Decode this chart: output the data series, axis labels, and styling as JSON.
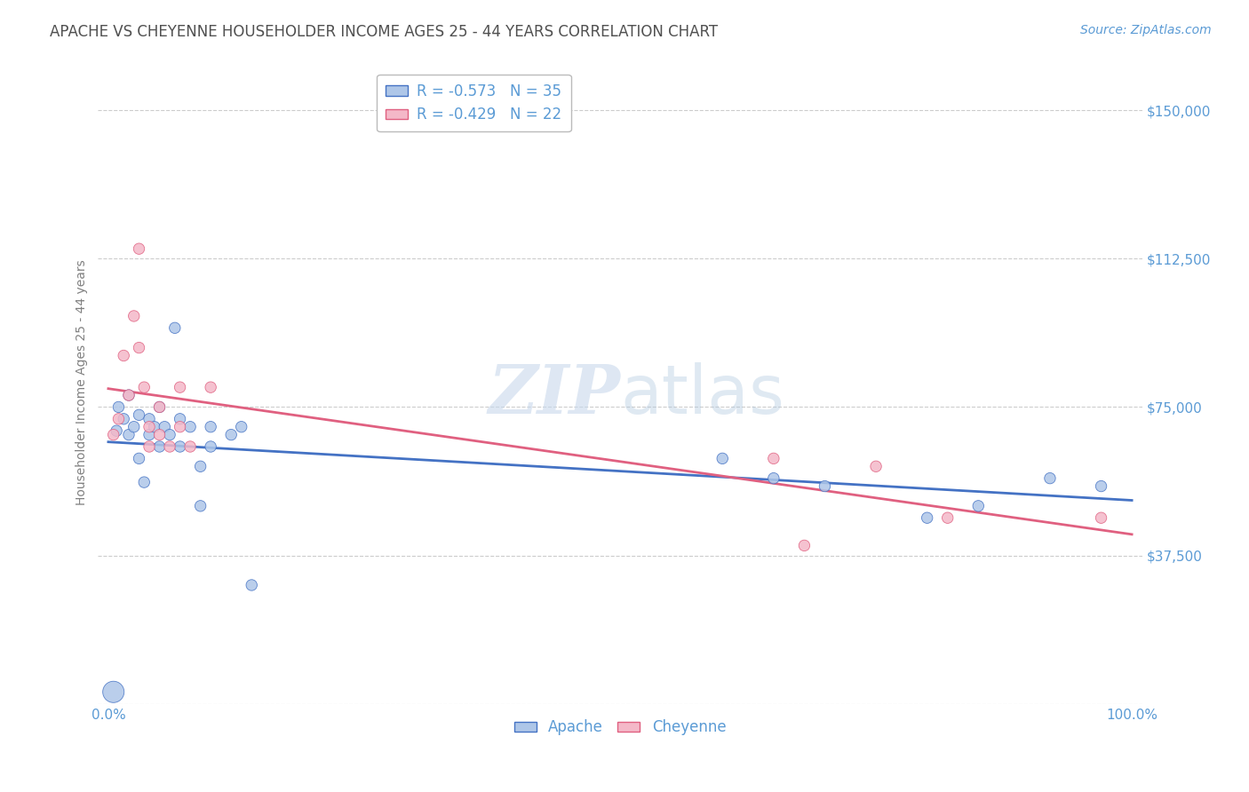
{
  "title": "APACHE VS CHEYENNE HOUSEHOLDER INCOME AGES 25 - 44 YEARS CORRELATION CHART",
  "source": "Source: ZipAtlas.com",
  "ylabel": "Householder Income Ages 25 - 44 years",
  "watermark_zip": "ZIP",
  "watermark_atlas": "atlas",
  "apache_R": -0.573,
  "apache_N": 35,
  "cheyenne_R": -0.429,
  "cheyenne_N": 22,
  "xlim": [
    -0.01,
    1.01
  ],
  "ylim": [
    0,
    162500
  ],
  "yticks": [
    0,
    37500,
    75000,
    112500,
    150000
  ],
  "ytick_labels": [
    "",
    "$37,500",
    "$75,000",
    "$112,500",
    "$150,000"
  ],
  "xtick_vals": [
    0.0,
    1.0
  ],
  "xtick_labels": [
    "0.0%",
    "100.0%"
  ],
  "background_color": "#ffffff",
  "grid_color": "#cccccc",
  "apache_color": "#aec6e8",
  "apache_edge_color": "#4472c4",
  "cheyenne_color": "#f4b8c8",
  "cheyenne_edge_color": "#e06080",
  "title_color": "#505050",
  "axis_label_color": "#5b9bd5",
  "ylabel_color": "#808080",
  "apache_line_color": "#4472c4",
  "cheyenne_line_color": "#e06080",
  "apache_x": [
    0.005,
    0.008,
    0.01,
    0.015,
    0.02,
    0.02,
    0.025,
    0.03,
    0.03,
    0.035,
    0.04,
    0.04,
    0.045,
    0.05,
    0.05,
    0.055,
    0.06,
    0.065,
    0.07,
    0.07,
    0.08,
    0.09,
    0.09,
    0.1,
    0.1,
    0.12,
    0.13,
    0.14,
    0.6,
    0.65,
    0.7,
    0.8,
    0.85,
    0.92,
    0.97
  ],
  "apache_y": [
    3000,
    69000,
    75000,
    72000,
    78000,
    68000,
    70000,
    73000,
    62000,
    56000,
    72000,
    68000,
    70000,
    75000,
    65000,
    70000,
    68000,
    95000,
    72000,
    65000,
    70000,
    60000,
    50000,
    65000,
    70000,
    68000,
    70000,
    30000,
    62000,
    57000,
    55000,
    47000,
    50000,
    57000,
    55000
  ],
  "cheyenne_x": [
    0.005,
    0.01,
    0.015,
    0.02,
    0.025,
    0.03,
    0.03,
    0.035,
    0.04,
    0.04,
    0.05,
    0.05,
    0.06,
    0.07,
    0.07,
    0.08,
    0.1,
    0.65,
    0.68,
    0.75,
    0.82,
    0.97
  ],
  "cheyenne_y": [
    68000,
    72000,
    88000,
    78000,
    98000,
    90000,
    115000,
    80000,
    70000,
    65000,
    75000,
    68000,
    65000,
    80000,
    70000,
    65000,
    80000,
    62000,
    40000,
    60000,
    47000,
    47000
  ],
  "apache_sizes": [
    300,
    80,
    80,
    80,
    80,
    80,
    80,
    80,
    80,
    80,
    80,
    80,
    80,
    80,
    80,
    80,
    80,
    80,
    80,
    80,
    80,
    80,
    80,
    80,
    80,
    80,
    80,
    80,
    80,
    80,
    80,
    80,
    80,
    80,
    80
  ],
  "cheyenne_sizes": [
    80,
    80,
    80,
    80,
    80,
    80,
    80,
    80,
    80,
    80,
    80,
    80,
    80,
    80,
    80,
    80,
    80,
    80,
    80,
    80,
    80,
    80
  ],
  "marker_size": 80,
  "font_size_title": 12,
  "font_size_axis_label": 10,
  "font_size_tick": 11,
  "font_size_legend": 12,
  "font_size_source": 10,
  "font_size_watermark": 55
}
